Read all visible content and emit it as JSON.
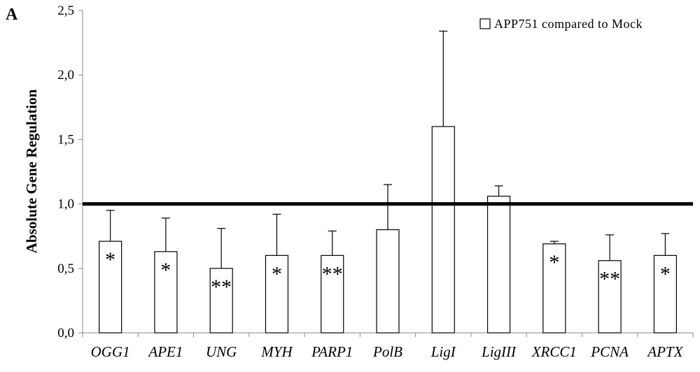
{
  "panel_label": "A",
  "chart_data": {
    "type": "bar",
    "title": "",
    "xlabel": "",
    "ylabel": "Absolute Gene Regulation",
    "ylim": [
      0,
      2.5
    ],
    "yticks": [
      "0,0",
      "0,5",
      "1,0",
      "1,5",
      "2,0",
      "2,5"
    ],
    "ytick_values": [
      0,
      0.5,
      1.0,
      1.5,
      2.0,
      2.5
    ],
    "grid": false,
    "legend_position": "top-right",
    "reference_line": 1.0,
    "categories": [
      "OGG1",
      "APE1",
      "UNG",
      "MYH",
      "PARP1",
      "PolB",
      "LigI",
      "LigIII",
      "XRCC1",
      "PCNA",
      "APTX"
    ],
    "series": [
      {
        "name": "APP751 compared to Mock",
        "values": [
          0.71,
          0.63,
          0.5,
          0.6,
          0.6,
          0.8,
          1.6,
          1.06,
          0.69,
          0.56,
          0.6
        ],
        "errors": [
          0.24,
          0.26,
          0.31,
          0.32,
          0.19,
          0.35,
          0.74,
          0.08,
          0.02,
          0.2,
          0.17
        ],
        "significance": [
          "*",
          "*",
          "**",
          "*",
          "**",
          "",
          "",
          "",
          "*",
          "**",
          "*"
        ]
      }
    ]
  }
}
